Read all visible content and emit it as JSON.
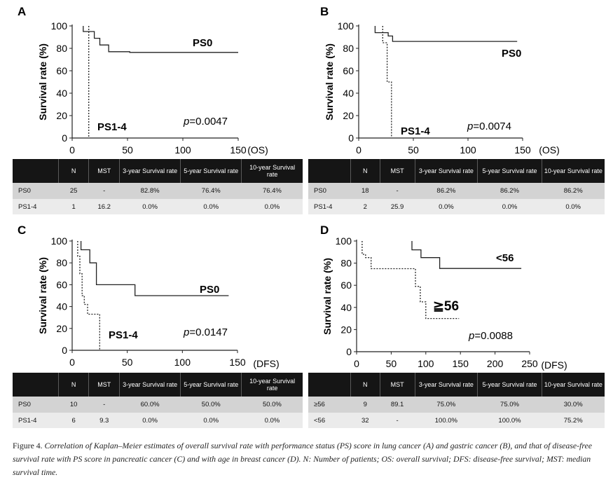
{
  "panels": [
    {
      "id": "A",
      "ylabel": "Survival rate (%)",
      "axis_unit": "(OS)",
      "y_ticks": [
        "0",
        "20",
        "40",
        "60",
        "80",
        "100"
      ],
      "x_ticks": [
        "0",
        "50",
        "100",
        "150"
      ],
      "p_prefix": "p",
      "p_value": "=0.0047",
      "labels": [
        "PS0",
        "PS1-4"
      ],
      "columns": [
        "",
        "N",
        "MST",
        "3-year Survival rate",
        "5-year Survival  rate",
        "10-year Survival rate"
      ],
      "rows": [
        [
          "PS0",
          "25",
          "-",
          "82.8%",
          "76.4%",
          "76.4%"
        ],
        [
          "PS1-4",
          "1",
          "16.2",
          "0.0%",
          "0.0%",
          "0.0%"
        ]
      ]
    },
    {
      "id": "B",
      "ylabel": "Survival rate (%)",
      "axis_unit": "(OS)",
      "y_ticks": [
        "0",
        "20",
        "40",
        "60",
        "80",
        "100"
      ],
      "x_ticks": [
        "0",
        "50",
        "100",
        "150"
      ],
      "p_prefix": "p",
      "p_value": "=0.0074",
      "labels": [
        "PS0",
        "PS1-4"
      ],
      "columns": [
        "",
        "N",
        "MST",
        "3-year Survival rate",
        "5-year Survival  rate",
        "10-year Survival rate"
      ],
      "rows": [
        [
          "PS0",
          "18",
          "-",
          "86.2%",
          "86.2%",
          "86.2%"
        ],
        [
          "PS1-4",
          "2",
          "25.9",
          "0.0%",
          "0.0%",
          "0.0%"
        ]
      ]
    },
    {
      "id": "C",
      "ylabel": "Survival rate (%)",
      "axis_unit": "(DFS)",
      "y_ticks": [
        "0",
        "20",
        "40",
        "60",
        "80",
        "100"
      ],
      "x_ticks": [
        "0",
        "50",
        "100",
        "150"
      ],
      "p_prefix": "p",
      "p_value": "=0.0147",
      "labels": [
        "PS0",
        "PS1-4"
      ],
      "columns": [
        "",
        "N",
        "MST",
        "3-year Survival rate",
        "5-year Survival  rate",
        "10-year Survival rate"
      ],
      "rows": [
        [
          "PS0",
          "10",
          "-",
          "60.0%",
          "50.0%",
          "50.0%"
        ],
        [
          "PS1-4",
          "6",
          "9.3",
          "0.0%",
          "0.0%",
          "0.0%"
        ]
      ]
    },
    {
      "id": "D",
      "ylabel": "Survival rate (%)",
      "axis_unit": "(DFS)",
      "y_ticks": [
        "0",
        "20",
        "40",
        "60",
        "80",
        "100"
      ],
      "x_ticks": [
        "0",
        "50",
        "100",
        "150",
        "200",
        "250"
      ],
      "p_prefix": "p",
      "p_value": "=0.0088",
      "labels": [
        "<56",
        "≧56"
      ],
      "columns": [
        "",
        "N",
        "MST",
        "3-year Survival rate",
        "5-year Survival  rate",
        "10-year Survival rate"
      ],
      "rows": [
        [
          "≥56",
          "9",
          "89.1",
          "75.0%",
          "75.0%",
          "30.0%"
        ],
        [
          "<56",
          "32",
          "-",
          "100.0%",
          "100.0%",
          "75.2%"
        ]
      ]
    }
  ],
  "chart_data": [
    {
      "type": "line",
      "panel": "A",
      "xlabel": "(OS)",
      "ylabel": "Survival rate (%)",
      "xlim": [
        0,
        150
      ],
      "ylim": [
        0,
        100
      ],
      "series": [
        {
          "name": "PS0",
          "style": "solid",
          "x": [
            10,
            10,
            20,
            20,
            25,
            25,
            33,
            33,
            52,
            52,
            150
          ],
          "y": [
            100,
            95,
            95,
            89,
            89,
            83,
            83,
            77,
            77,
            76.4,
            76.4
          ]
        },
        {
          "name": "PS1-4",
          "style": "dashed",
          "x": [
            15,
            15
          ],
          "y": [
            100,
            0
          ]
        }
      ]
    },
    {
      "type": "line",
      "panel": "B",
      "xlabel": "(OS)",
      "ylabel": "Survival rate (%)",
      "xlim": [
        0,
        150
      ],
      "ylim": [
        0,
        100
      ],
      "series": [
        {
          "name": "PS0",
          "style": "solid",
          "x": [
            15,
            15,
            27,
            27,
            31,
            31,
            145
          ],
          "y": [
            100,
            94,
            94,
            91,
            91,
            86.2,
            86.2
          ]
        },
        {
          "name": "PS1-4",
          "style": "dashed",
          "x": [
            22,
            22,
            26,
            26,
            30,
            30
          ],
          "y": [
            100,
            85,
            85,
            50,
            50,
            0
          ]
        }
      ]
    },
    {
      "type": "line",
      "panel": "C",
      "xlabel": "(DFS)",
      "ylabel": "Survival rate (%)",
      "xlim": [
        0,
        150
      ],
      "ylim": [
        0,
        100
      ],
      "series": [
        {
          "name": "PS0",
          "style": "solid",
          "x": [
            8,
            8,
            16,
            16,
            22,
            22,
            57,
            57,
            142
          ],
          "y": [
            100,
            92,
            92,
            80,
            80,
            60,
            60,
            50,
            50
          ]
        },
        {
          "name": "PS1-4",
          "style": "dashed",
          "x": [
            5,
            5,
            7,
            7,
            9,
            9,
            11,
            11,
            14,
            14,
            25,
            25
          ],
          "y": [
            100,
            86,
            86,
            70,
            70,
            50,
            50,
            42,
            42,
            33,
            33,
            0
          ]
        }
      ]
    },
    {
      "type": "line",
      "panel": "D",
      "xlabel": "(DFS)",
      "ylabel": "Survival rate (%)",
      "xlim": [
        0,
        250
      ],
      "ylim": [
        0,
        100
      ],
      "series": [
        {
          "name": "<56",
          "style": "solid",
          "x": [
            80,
            80,
            93,
            93,
            120,
            120,
            238
          ],
          "y": [
            100,
            92,
            92,
            85,
            85,
            75.2,
            75.2
          ]
        },
        {
          "name": "≧56",
          "style": "dashed",
          "x": [
            8,
            8,
            13,
            13,
            21,
            21,
            85,
            85,
            92,
            92,
            100,
            100,
            148
          ],
          "y": [
            100,
            88,
            88,
            85,
            85,
            75,
            75,
            59,
            59,
            45,
            45,
            30,
            30
          ]
        }
      ]
    }
  ],
  "caption": {
    "lead": "Figure 4. ",
    "text": "Correlation of Kaplan–Meier estimates of overall survival rate with performance status (PS) score in lung cancer (A) and gastric cancer (B), and that of disease-free survival rate with PS score in pancreatic cancer (C) and with age in breast cancer (D). N: Number of patients; OS: overall survival; DFS: disease-free survival; MST: median survival time."
  }
}
